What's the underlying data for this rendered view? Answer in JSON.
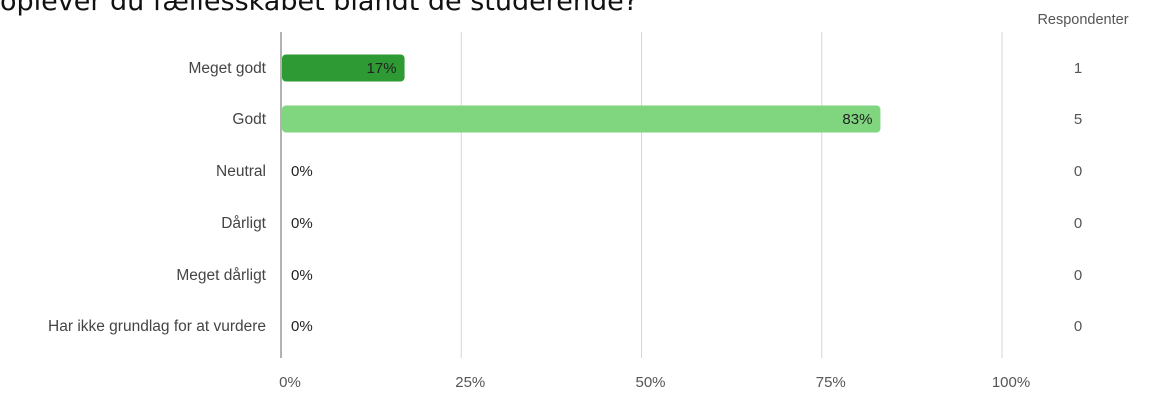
{
  "page": {
    "title": "oplever du fællesskabet blandt de studerende?"
  },
  "chart_data": {
    "type": "bar",
    "orientation": "horizontal",
    "title": "oplever du fællesskabet blandt de studerende?",
    "categories": [
      "Meget godt",
      "Godt",
      "Neutral",
      "Dårligt",
      "Meget dårligt",
      "Har ikke grundlag for at vurdere"
    ],
    "values": [
      17,
      83,
      0,
      0,
      0,
      0
    ],
    "value_labels": [
      "17%",
      "83%",
      "0%",
      "0%",
      "0%",
      "0%"
    ],
    "xlim": [
      0,
      100
    ],
    "xticks": [
      "0%",
      "25%",
      "50%",
      "75%",
      "100%"
    ],
    "grid": true,
    "bar_colors": [
      "#2e9a34",
      "#7fd67f",
      "#7fd67f",
      "#7fd67f",
      "#7fd67f",
      "#7fd67f"
    ],
    "respondents_header": "Respondenter",
    "respondents": [
      1,
      5,
      0,
      0,
      0,
      0
    ]
  }
}
